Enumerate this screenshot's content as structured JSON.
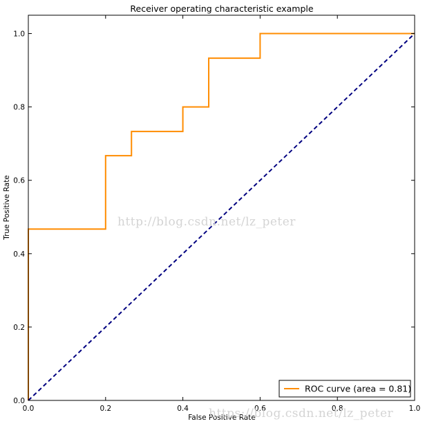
{
  "chart_data": {
    "type": "line",
    "title": "Receiver operating characteristic example",
    "xlabel": "False Positive Rate",
    "ylabel": "True Positive Rate",
    "xlim": [
      0.0,
      1.0
    ],
    "ylim": [
      0.0,
      1.05
    ],
    "xticks": [
      0.0,
      0.2,
      0.4,
      0.6,
      0.8,
      1.0
    ],
    "xtick_labels": [
      "0.0",
      "0.2",
      "0.4",
      "0.6",
      "0.8",
      "1.0"
    ],
    "yticks": [
      0.0,
      0.2,
      0.4,
      0.6,
      0.8,
      1.0
    ],
    "ytick_labels": [
      "0.0",
      "0.2",
      "0.4",
      "0.6",
      "0.8",
      "1.0"
    ],
    "grid": false,
    "legend_position": "lower-right",
    "series": [
      {
        "name": "ROC curve (area = 0.81)",
        "color": "#ff8c00",
        "style": "solid",
        "x": [
          0.0,
          0.0,
          0.2,
          0.2,
          0.267,
          0.267,
          0.4,
          0.4,
          0.467,
          0.467,
          0.6,
          0.6,
          1.0
        ],
        "y": [
          0.0,
          0.467,
          0.467,
          0.667,
          0.667,
          0.733,
          0.733,
          0.8,
          0.8,
          0.933,
          0.933,
          1.0,
          1.0
        ]
      },
      {
        "color": "#000080",
        "style": "dashed",
        "x": [
          0.0,
          1.0
        ],
        "y": [
          0.0,
          1.0
        ]
      }
    ]
  },
  "watermarks": [
    "http://blog.csdn.net/lz_peter",
    "https://blog.csdn.net/lz_peter"
  ]
}
